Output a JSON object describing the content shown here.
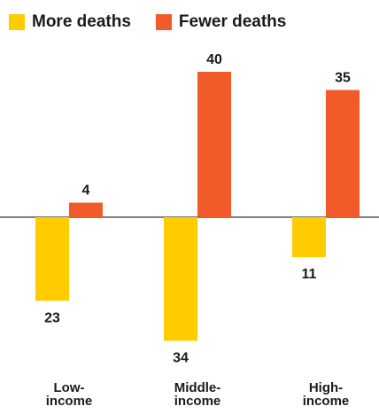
{
  "chart_data": {
    "type": "bar",
    "title": "",
    "xlabel": "",
    "ylabel": "",
    "categories": [
      [
        "Low-",
        "income"
      ],
      [
        "Middle-",
        "income"
      ],
      [
        "High-",
        "income"
      ]
    ],
    "series": [
      {
        "name": "More deaths",
        "color": "#FFCC00",
        "direction": "down",
        "values": [
          23,
          34,
          11
        ]
      },
      {
        "name": "Fewer deaths",
        "color": "#F15A29",
        "direction": "up",
        "values": [
          4,
          40,
          35
        ]
      }
    ],
    "ylim": [
      -34,
      40
    ],
    "grid": false,
    "legend_position": "top-left",
    "baseline_color": "#333333"
  }
}
